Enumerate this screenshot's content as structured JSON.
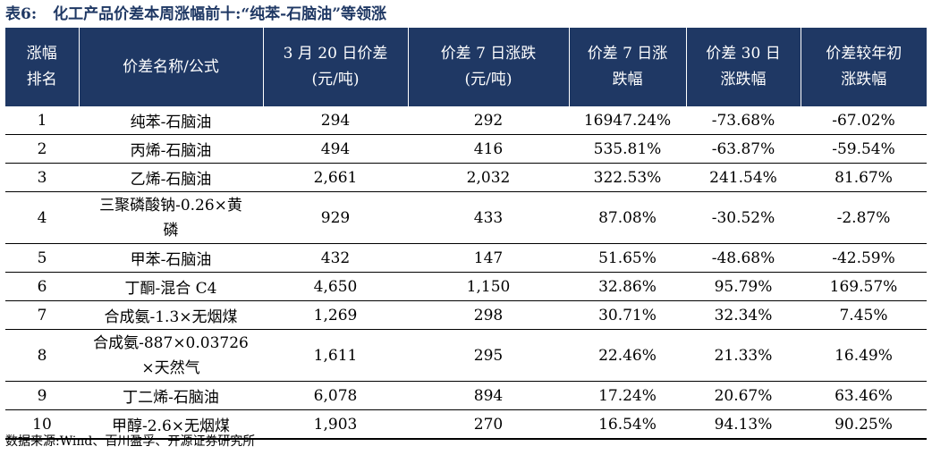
{
  "title": {
    "number": "表6:",
    "text": "化工产品价差本周涨幅前十:“纯苯-石脑油”等领涨"
  },
  "table": {
    "headers": [
      [
        "涨幅",
        "排名"
      ],
      [
        "价差名称/公式"
      ],
      [
        "3 月 20 日价差",
        "(元/吨)"
      ],
      [
        "价差 7 日涨跌",
        "(元/吨)"
      ],
      [
        "价差 7 日涨",
        "跌幅"
      ],
      [
        "价差 30 日",
        "涨跌幅"
      ],
      [
        "价差较年初",
        "涨跌幅"
      ]
    ],
    "rows": [
      {
        "rank": "1",
        "name": [
          "纯苯-石脑油"
        ],
        "spread": "294",
        "change7d": "292",
        "pct7d": "16947.24%",
        "pct30d": "-73.68%",
        "ytd": "-67.02%"
      },
      {
        "rank": "2",
        "name": [
          "丙烯-石脑油"
        ],
        "spread": "494",
        "change7d": "416",
        "pct7d": "535.81%",
        "pct30d": "-63.87%",
        "ytd": "-59.54%"
      },
      {
        "rank": "3",
        "name": [
          "乙烯-石脑油"
        ],
        "spread": "2,661",
        "change7d": "2,032",
        "pct7d": "322.53%",
        "pct30d": "241.54%",
        "ytd": "81.67%"
      },
      {
        "rank": "4",
        "name": [
          "三聚磷酸钠-0.26×黄",
          "磷"
        ],
        "spread": "929",
        "change7d": "433",
        "pct7d": "87.08%",
        "pct30d": "-30.52%",
        "ytd": "-2.87%"
      },
      {
        "rank": "5",
        "name": [
          "甲苯-石脑油"
        ],
        "spread": "432",
        "change7d": "147",
        "pct7d": "51.65%",
        "pct30d": "-48.68%",
        "ytd": "-42.59%"
      },
      {
        "rank": "6",
        "name": [
          "丁酮-混合 C4"
        ],
        "spread": "4,650",
        "change7d": "1,150",
        "pct7d": "32.86%",
        "pct30d": "95.79%",
        "ytd": "169.57%"
      },
      {
        "rank": "7",
        "name": [
          "合成氨-1.3×无烟煤"
        ],
        "spread": "1,269",
        "change7d": "298",
        "pct7d": "30.71%",
        "pct30d": "32.34%",
        "ytd": "7.45%"
      },
      {
        "rank": "8",
        "name": [
          "合成氨-887×0.03726",
          "×天然气"
        ],
        "spread": "1,611",
        "change7d": "295",
        "pct7d": "22.46%",
        "pct30d": "21.33%",
        "ytd": "16.49%"
      },
      {
        "rank": "9",
        "name": [
          "丁二烯-石脑油"
        ],
        "spread": "6,078",
        "change7d": "894",
        "pct7d": "17.24%",
        "pct30d": "20.67%",
        "ytd": "63.46%"
      },
      {
        "rank": "10",
        "name": [
          "甲醇-2.6×无烟煤"
        ],
        "spread": "1,903",
        "change7d": "270",
        "pct7d": "16.54%",
        "pct30d": "94.13%",
        "ytd": "90.25%"
      }
    ]
  },
  "source": "数据来源:Wind、百川盈孚、开源证券研究所",
  "colors": {
    "header_bg": "#1f3864",
    "header_text": "#ffffff",
    "title_text": "#1f3864"
  }
}
